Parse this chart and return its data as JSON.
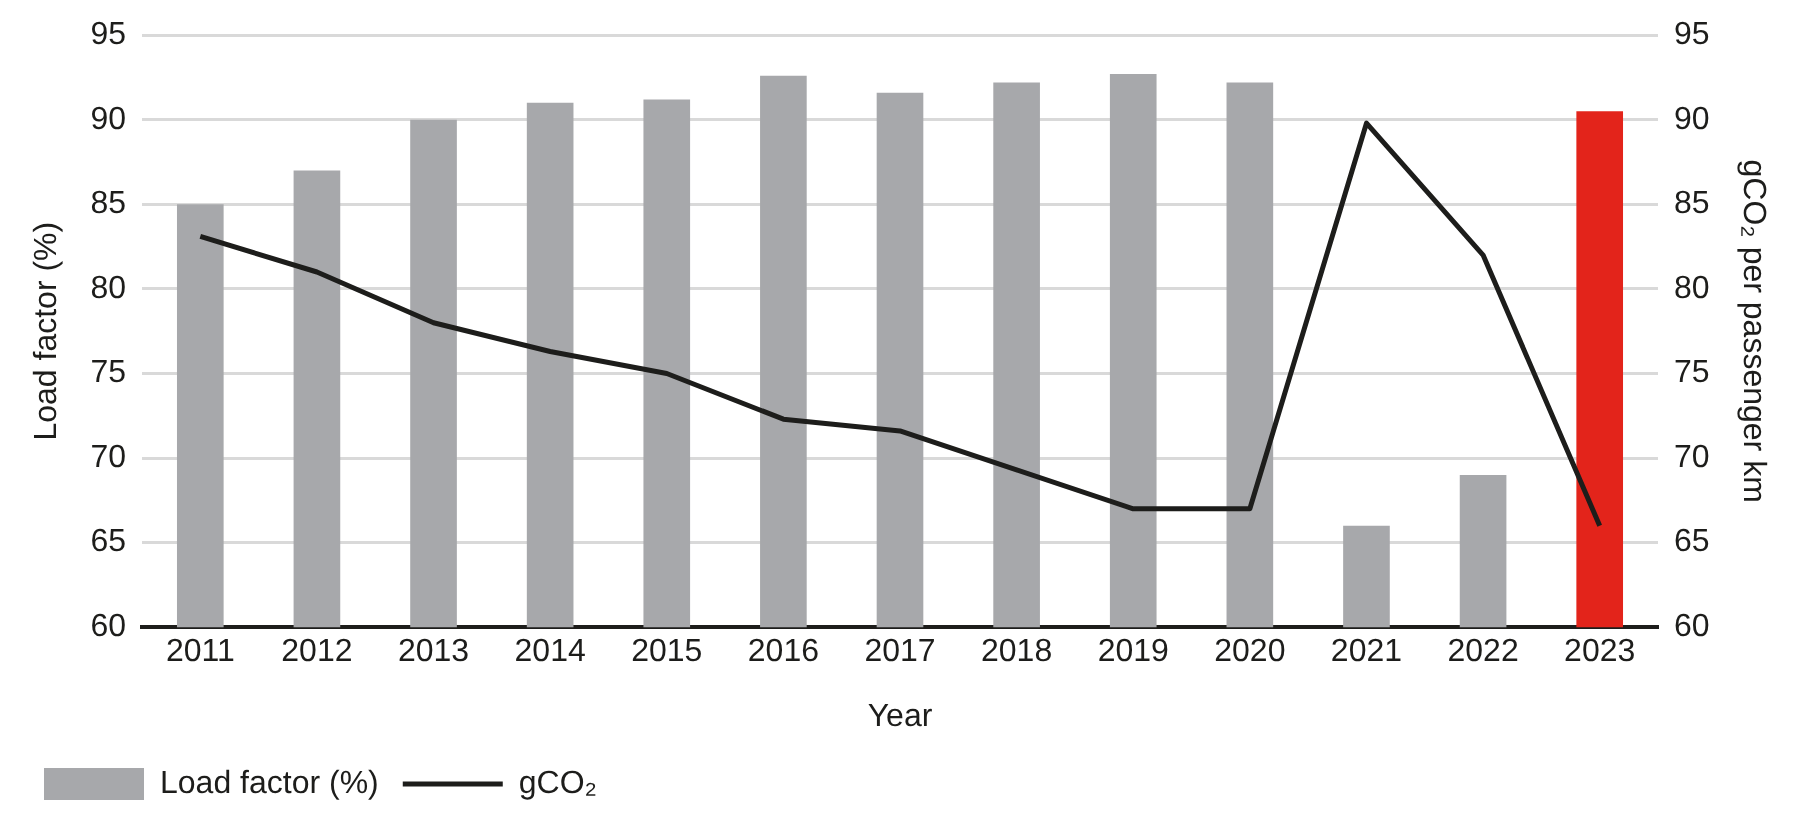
{
  "chart_data": {
    "type": "bar",
    "xlabel": "Year",
    "ylabel": "Load factor (%)",
    "y2label": "gCO₂ per passenger km",
    "categories": [
      "2011",
      "2012",
      "2013",
      "2014",
      "2015",
      "2016",
      "2017",
      "2018",
      "2019",
      "2020",
      "2021",
      "2022",
      "2023"
    ],
    "series": [
      {
        "name": "Load factor (%)",
        "colors": [
          "#a7a8ab",
          "#a7a8ab",
          "#a7a8ab",
          "#a7a8ab",
          "#a7a8ab",
          "#a7a8ab",
          "#a7a8ab",
          "#a7a8ab",
          "#a7a8ab",
          "#a7a8ab",
          "#a7a8ab",
          "#a7a8ab",
          "#e3241b"
        ],
        "values": [
          85,
          87,
          90,
          91,
          91.2,
          92.6,
          91.6,
          92.2,
          92.7,
          92.2,
          66,
          69,
          90.5
        ]
      },
      {
        "name": "gCO₂",
        "type": "line",
        "axis": "y2",
        "color": "#1d1d1b",
        "values": [
          83.1,
          81,
          78,
          76.3,
          75,
          72.3,
          71.6,
          69.3,
          67,
          67,
          89.8,
          82,
          66
        ]
      }
    ],
    "ylim": [
      60,
      95
    ],
    "yticks": [
      60,
      65,
      70,
      75,
      80,
      85,
      90,
      95
    ],
    "y2lim": [
      60,
      95
    ],
    "y2ticks": [
      60,
      65,
      70,
      75,
      80,
      85,
      90,
      95
    ],
    "grid": "y",
    "legend": "bottom left",
    "marker": "none",
    "line_style": "solid"
  }
}
